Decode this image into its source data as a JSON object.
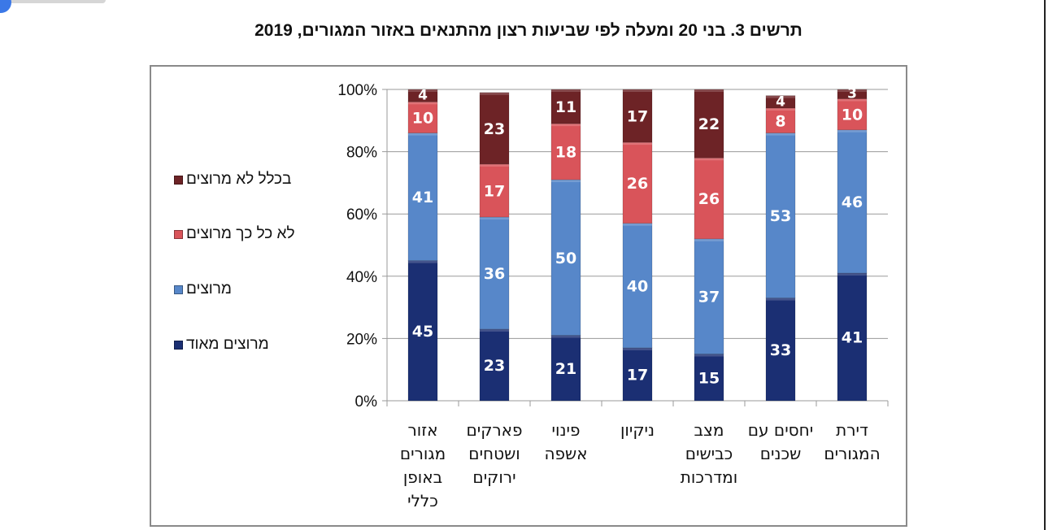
{
  "title": "תרשים 3. בני 20 ומעלה לפי שביעות רצון מהתנאים באזור המגורים, 2019",
  "chart_data": {
    "type": "bar",
    "stacked": true,
    "title": "תרשים 3. בני 20 ומעלה לפי שביעות רצון מהתנאים באזור המגורים, 2019",
    "ylim": [
      0,
      100
    ],
    "yticks": [
      "0%",
      "20%",
      "40%",
      "60%",
      "80%",
      "100%"
    ],
    "legend_position": "left",
    "categories": [
      [
        "אזור",
        "מגורים",
        "באופן",
        "כללי"
      ],
      [
        "פארקים",
        "ושטחים",
        "ירוקים"
      ],
      [
        "פינוי",
        "אשפה"
      ],
      [
        "ניקיון"
      ],
      [
        "מצב",
        "כבישים",
        "ומדרכות"
      ],
      [
        "יחסים עם",
        "שכנים"
      ],
      [
        "דירת",
        "המגורים"
      ]
    ],
    "series": [
      {
        "name": "מרוצים מאוד",
        "color": "#1b2f73",
        "values": [
          45,
          23,
          21,
          17,
          15,
          33,
          41
        ]
      },
      {
        "name": "מרוצים",
        "color": "#5787c9",
        "values": [
          41,
          36,
          50,
          40,
          37,
          53,
          46
        ]
      },
      {
        "name": "לא כל כך מרוצים",
        "color": "#d9545a",
        "values": [
          10,
          17,
          18,
          26,
          26,
          8,
          10
        ]
      },
      {
        "name": "בכלל לא מרוצים",
        "color": "#6d2326",
        "values": [
          4,
          23,
          11,
          17,
          22,
          4,
          3
        ]
      }
    ]
  }
}
